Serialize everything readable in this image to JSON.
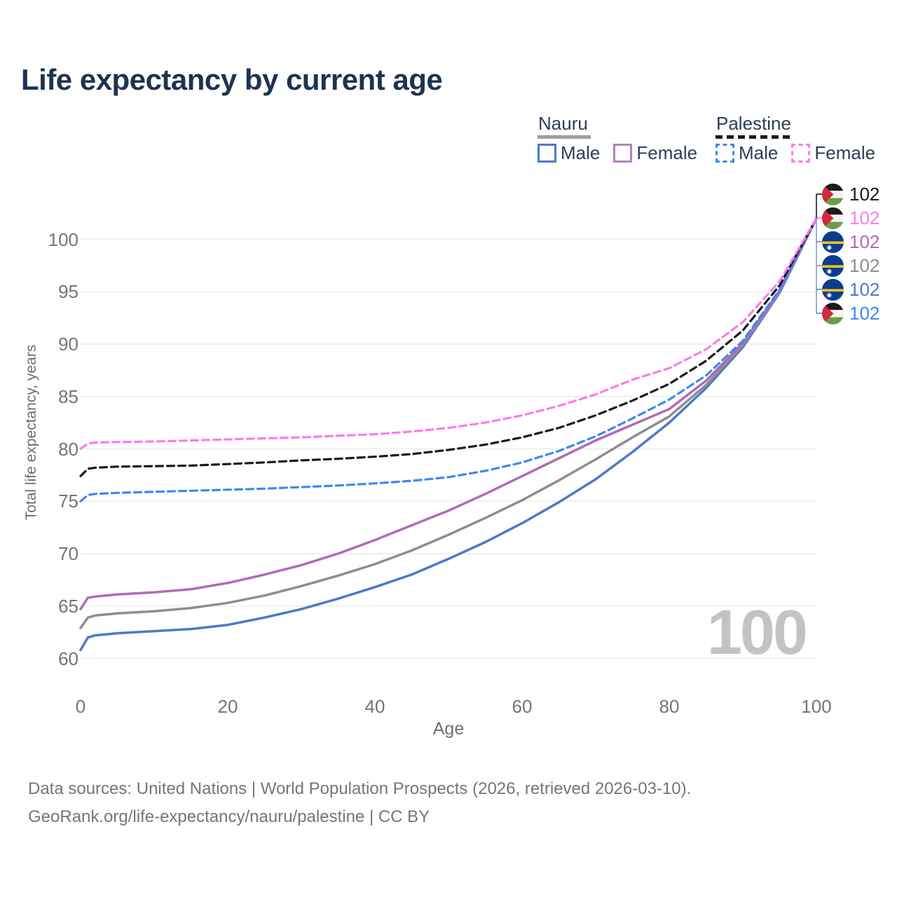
{
  "page": {
    "title": "Life expectancy by current age"
  },
  "legend": {
    "groups": [
      {
        "name": "Nauru",
        "line_style": "solid",
        "underline_color": "#9e9e9e",
        "items": [
          {
            "label": "Male",
            "color": "#4e79c7"
          },
          {
            "label": "Female",
            "color": "#b183bb"
          }
        ]
      },
      {
        "name": "Palestine",
        "line_style": "dashed",
        "underline_color": "#1a1a1a",
        "items": [
          {
            "label": "Male",
            "color": "#3d87f5"
          },
          {
            "label": "Female",
            "color": "#fa7de9"
          }
        ]
      }
    ]
  },
  "end_labels": [
    {
      "value": "102",
      "flag": "palestine",
      "color": "#1a1a1a",
      "series": "Palestine"
    },
    {
      "value": "102",
      "flag": "palestine",
      "color": "#fa7de9",
      "series": "Palestine Female"
    },
    {
      "value": "102",
      "flag": "nauru",
      "color": "#b06ab8",
      "series": "Nauru Female"
    },
    {
      "value": "102",
      "flag": "nauru",
      "color": "#8e8e8e",
      "series": "Nauru"
    },
    {
      "value": "102",
      "flag": "nauru",
      "color": "#4e79c7",
      "series": "Nauru Male"
    },
    {
      "value": "102",
      "flag": "palestine",
      "color": "#3d87f5",
      "series": "Palestine Male"
    }
  ],
  "age_counter": "100",
  "axes": {
    "x_label": "Age",
    "y_label": "Total life expectancy, years"
  },
  "footer": {
    "line1": "Data sources: United Nations | World Population Prospects (2026, retrieved 2026-03-10).",
    "line2": "GeoRank.org/life-expectancy/nauru/palestine | CC BY"
  },
  "chart_data": {
    "type": "line",
    "title": "Life expectancy by current age",
    "xlabel": "Age",
    "ylabel": "Total life expectancy, years",
    "xlim": [
      0,
      100
    ],
    "ylim": [
      60,
      100
    ],
    "xticks": [
      0,
      20,
      40,
      60,
      80,
      100
    ],
    "yticks": [
      60,
      65,
      70,
      75,
      80,
      85,
      90,
      95,
      100
    ],
    "grid": "horizontal",
    "legend_position": "top-right",
    "x": [
      0,
      1,
      2,
      5,
      10,
      15,
      20,
      25,
      30,
      35,
      40,
      45,
      50,
      55,
      60,
      65,
      70,
      75,
      80,
      85,
      90,
      95,
      100
    ],
    "series": [
      {
        "id": "nauru-male",
        "name": "Nauru Male",
        "color": "#4e79c7",
        "dashed": false,
        "values": [
          60.8,
          62.0,
          62.2,
          62.4,
          62.6,
          62.8,
          63.2,
          63.9,
          64.7,
          65.7,
          66.8,
          68.0,
          69.5,
          71.1,
          72.9,
          74.9,
          77.1,
          79.7,
          82.5,
          85.8,
          89.7,
          94.9,
          102
        ]
      },
      {
        "id": "nauru-total",
        "name": "Nauru",
        "color": "#8e8e8e",
        "dashed": false,
        "values": [
          62.9,
          63.9,
          64.1,
          64.3,
          64.5,
          64.8,
          65.3,
          66.0,
          66.9,
          67.9,
          69.0,
          70.3,
          71.8,
          73.4,
          75.1,
          77.0,
          79.0,
          81.1,
          83.1,
          86.1,
          89.9,
          95.0,
          102
        ]
      },
      {
        "id": "nauru-female",
        "name": "Nauru Female",
        "color": "#b06ab8",
        "dashed": false,
        "values": [
          64.7,
          65.8,
          65.9,
          66.1,
          66.3,
          66.6,
          67.2,
          68.0,
          68.9,
          70.0,
          71.3,
          72.7,
          74.1,
          75.7,
          77.4,
          79.1,
          80.8,
          82.3,
          83.8,
          86.5,
          90.1,
          95.1,
          102
        ]
      },
      {
        "id": "palestine-male",
        "name": "Palestine Male",
        "color": "#3d87f5",
        "dashed": true,
        "values": [
          75.0,
          75.6,
          75.7,
          75.8,
          75.9,
          76.0,
          76.1,
          76.2,
          76.35,
          76.5,
          76.7,
          76.95,
          77.3,
          77.9,
          78.7,
          79.8,
          81.2,
          82.9,
          84.7,
          87.0,
          90.3,
          95.2,
          102
        ]
      },
      {
        "id": "palestine-total",
        "name": "Palestine",
        "color": "#1a1a1a",
        "dashed": true,
        "values": [
          77.4,
          78.1,
          78.2,
          78.3,
          78.35,
          78.4,
          78.55,
          78.7,
          78.9,
          79.05,
          79.25,
          79.5,
          79.9,
          80.4,
          81.1,
          82.0,
          83.2,
          84.6,
          86.2,
          88.4,
          91.3,
          95.6,
          102
        ]
      },
      {
        "id": "palestine-female",
        "name": "Palestine Female",
        "color": "#fa7de9",
        "dashed": true,
        "values": [
          80.0,
          80.5,
          80.6,
          80.65,
          80.7,
          80.8,
          80.9,
          81.0,
          81.1,
          81.25,
          81.4,
          81.65,
          82.0,
          82.5,
          83.2,
          84.1,
          85.2,
          86.6,
          87.7,
          89.5,
          92.1,
          96.0,
          102
        ]
      }
    ]
  }
}
